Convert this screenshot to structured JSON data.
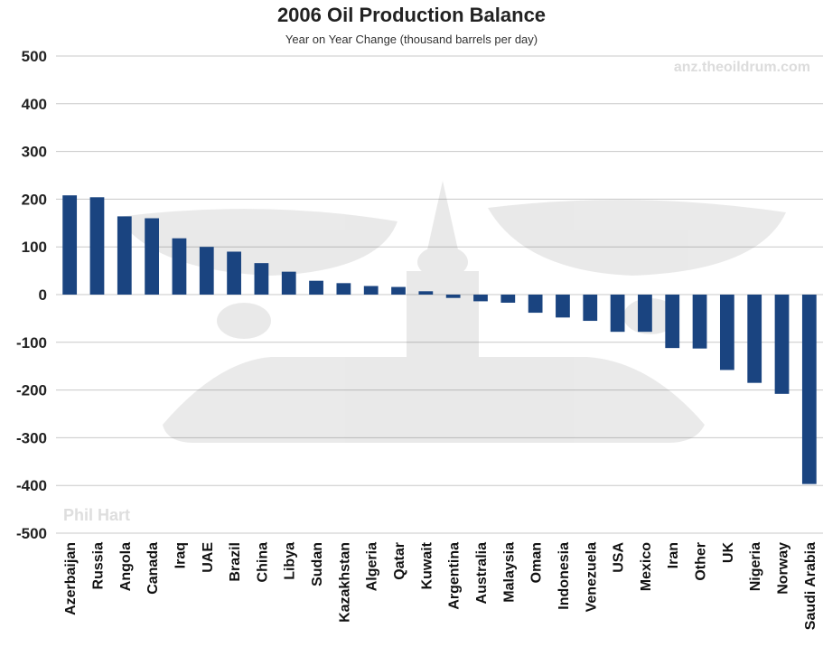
{
  "chart_data": {
    "type": "bar",
    "title": "2006 Oil Production Balance",
    "subtitle": "Year on Year Change (thousand barrels per day)",
    "xlabel": "",
    "ylabel": "",
    "ylim": [
      -500,
      500
    ],
    "yticks": [
      500,
      400,
      300,
      200,
      100,
      0,
      -100,
      -200,
      -300,
      -400,
      -500
    ],
    "grid": true,
    "bar_color": "#1a4480",
    "categories": [
      "Azerbaijan",
      "Russia",
      "Angola",
      "Canada",
      "Iraq",
      "UAE",
      "Brazil",
      "China",
      "Libya",
      "Sudan",
      "Kazakhstan",
      "Algeria",
      "Qatar",
      "Kuwait",
      "Argentina",
      "Australia",
      "Malaysia",
      "Oman",
      "Indonesia",
      "Venezuela",
      "USA",
      "Mexico",
      "Iran",
      "Other",
      "UK",
      "Nigeria",
      "Norway",
      "Saudi Arabia"
    ],
    "values": [
      208,
      204,
      164,
      160,
      118,
      100,
      90,
      66,
      48,
      29,
      24,
      18,
      16,
      7,
      -7,
      -14,
      -17,
      -38,
      -48,
      -55,
      -78,
      -78,
      -112,
      -113,
      -158,
      -185,
      -208,
      -397
    ]
  },
  "watermarks": {
    "site": "anz.theoildrum.com",
    "author": "Phil Hart"
  }
}
